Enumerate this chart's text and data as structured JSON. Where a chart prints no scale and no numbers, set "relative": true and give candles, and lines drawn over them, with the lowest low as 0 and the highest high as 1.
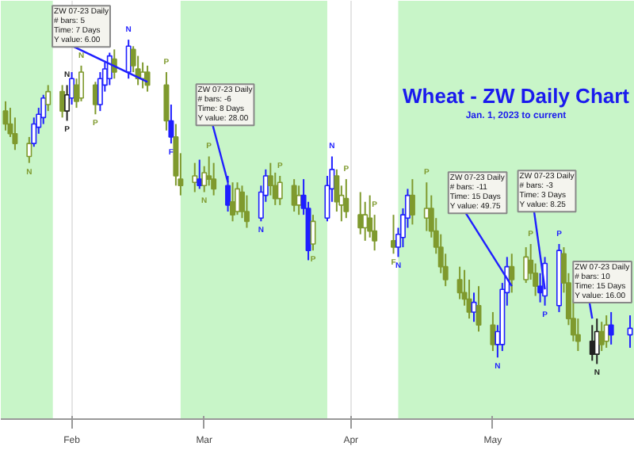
{
  "chart_data": {
    "type": "candlestick",
    "relative": true,
    "title": "Wheat - ZW Daily Chart",
    "subtitle": "Jan. 1, 2023 to current",
    "x": [
      "2023-01-18",
      "2023-01-19",
      "2023-01-20",
      "2023-01-23",
      "2023-01-24",
      "2023-01-25",
      "2023-01-26",
      "2023-01-27",
      "2023-01-30",
      "2023-01-31",
      "2023-02-01",
      "2023-02-02",
      "2023-02-03",
      "2023-02-06",
      "2023-02-07",
      "2023-02-08",
      "2023-02-09",
      "2023-02-10",
      "2023-02-13",
      "2023-02-14",
      "2023-02-15",
      "2023-02-16",
      "2023-02-17",
      "2023-02-21",
      "2023-02-22",
      "2023-02-23",
      "2023-02-24",
      "2023-02-27",
      "2023-02-28",
      "2023-03-01",
      "2023-03-02",
      "2023-03-03",
      "2023-03-06",
      "2023-03-07",
      "2023-03-08",
      "2023-03-09",
      "2023-03-10",
      "2023-03-13",
      "2023-03-14",
      "2023-03-15",
      "2023-03-16",
      "2023-03-17",
      "2023-03-20",
      "2023-03-21",
      "2023-03-22",
      "2023-03-23",
      "2023-03-24",
      "2023-03-27",
      "2023-03-28",
      "2023-03-29",
      "2023-03-30",
      "2023-03-31",
      "2023-04-03",
      "2023-04-04",
      "2023-04-05",
      "2023-04-06",
      "2023-04-10",
      "2023-04-11",
      "2023-04-12",
      "2023-04-13",
      "2023-04-14",
      "2023-04-17",
      "2023-04-18",
      "2023-04-19",
      "2023-04-20",
      "2023-04-21",
      "2023-04-24",
      "2023-04-25",
      "2023-04-26",
      "2023-04-27",
      "2023-04-28",
      "2023-05-01",
      "2023-05-02",
      "2023-05-03",
      "2023-05-04",
      "2023-05-05",
      "2023-05-08",
      "2023-05-09",
      "2023-05-10",
      "2023-05-11",
      "2023-05-12",
      "2023-05-15",
      "2023-05-16",
      "2023-05-17",
      "2023-05-18",
      "2023-05-19",
      "2023-05-22",
      "2023-05-23",
      "2023-05-24",
      "2023-05-25",
      "2023-05-26",
      "2023-05-30"
    ],
    "ohlc": [
      [
        0.78,
        0.81,
        0.72,
        0.74
      ],
      [
        0.74,
        0.79,
        0.7,
        0.71
      ],
      [
        0.71,
        0.76,
        0.66,
        0.68
      ],
      [
        0.64,
        0.7,
        0.62,
        0.68
      ],
      [
        0.68,
        0.76,
        0.67,
        0.74
      ],
      [
        0.73,
        0.79,
        0.71,
        0.77
      ],
      [
        0.76,
        0.83,
        0.74,
        0.82
      ],
      [
        0.8,
        0.86,
        0.78,
        0.84
      ],
      [
        0.84,
        0.86,
        0.76,
        0.78
      ],
      [
        0.78,
        0.86,
        0.75,
        0.83
      ],
      [
        0.82,
        0.9,
        0.8,
        0.88
      ],
      [
        0.86,
        0.88,
        0.79,
        0.81
      ],
      [
        0.82,
        0.92,
        0.81,
        0.9
      ],
      [
        0.86,
        0.87,
        0.77,
        0.8
      ],
      [
        0.8,
        0.9,
        0.78,
        0.88
      ],
      [
        0.86,
        0.93,
        0.84,
        0.91
      ],
      [
        0.88,
        0.96,
        0.86,
        0.95
      ],
      [
        0.94,
        0.97,
        0.88,
        0.9
      ],
      [
        0.9,
        1.0,
        0.88,
        0.98
      ],
      [
        0.97,
        0.98,
        0.9,
        0.92
      ],
      [
        0.91,
        0.95,
        0.86,
        0.88
      ],
      [
        0.88,
        0.93,
        0.85,
        0.9
      ],
      [
        0.9,
        0.92,
        0.84,
        0.86
      ],
      [
        0.86,
        0.9,
        0.72,
        0.75
      ],
      [
        0.75,
        0.8,
        0.68,
        0.7
      ],
      [
        0.7,
        0.74,
        0.55,
        0.58
      ],
      [
        0.57,
        0.65,
        0.52,
        0.55
      ],
      [
        0.56,
        0.62,
        0.53,
        0.58
      ],
      [
        0.57,
        0.63,
        0.54,
        0.55
      ],
      [
        0.55,
        0.61,
        0.53,
        0.59
      ],
      [
        0.58,
        0.64,
        0.55,
        0.57
      ],
      [
        0.57,
        0.62,
        0.52,
        0.54
      ],
      [
        0.55,
        0.58,
        0.47,
        0.49
      ],
      [
        0.5,
        0.56,
        0.44,
        0.46
      ],
      [
        0.47,
        0.56,
        0.46,
        0.54
      ],
      [
        0.53,
        0.55,
        0.45,
        0.47
      ],
      [
        0.47,
        0.52,
        0.42,
        0.44
      ],
      [
        0.45,
        0.55,
        0.44,
        0.53
      ],
      [
        0.52,
        0.6,
        0.5,
        0.58
      ],
      [
        0.58,
        0.62,
        0.52,
        0.55
      ],
      [
        0.55,
        0.59,
        0.49,
        0.51
      ],
      [
        0.51,
        0.58,
        0.49,
        0.56
      ],
      [
        0.55,
        0.57,
        0.47,
        0.49
      ],
      [
        0.49,
        0.55,
        0.46,
        0.52
      ],
      [
        0.52,
        0.57,
        0.46,
        0.48
      ],
      [
        0.48,
        0.5,
        0.32,
        0.35
      ],
      [
        0.37,
        0.46,
        0.35,
        0.44
      ],
      [
        0.45,
        0.58,
        0.44,
        0.55
      ],
      [
        0.54,
        0.64,
        0.5,
        0.6
      ],
      [
        0.58,
        0.6,
        0.47,
        0.5
      ],
      [
        0.49,
        0.55,
        0.44,
        0.52
      ],
      [
        0.51,
        0.57,
        0.45,
        0.47
      ],
      [
        0.46,
        0.53,
        0.4,
        0.42
      ],
      [
        0.42,
        0.5,
        0.38,
        0.46
      ],
      [
        0.45,
        0.52,
        0.39,
        0.41
      ],
      [
        0.41,
        0.46,
        0.35,
        0.38
      ],
      [
        0.38,
        0.46,
        0.34,
        0.36
      ],
      [
        0.36,
        0.42,
        0.33,
        0.4
      ],
      [
        0.39,
        0.48,
        0.36,
        0.46
      ],
      [
        0.45,
        0.54,
        0.42,
        0.52
      ],
      [
        0.52,
        0.57,
        0.43,
        0.46
      ],
      [
        0.45,
        0.56,
        0.41,
        0.48
      ],
      [
        0.48,
        0.52,
        0.39,
        0.41
      ],
      [
        0.41,
        0.45,
        0.34,
        0.36
      ],
      [
        0.36,
        0.4,
        0.28,
        0.3
      ],
      [
        0.3,
        0.34,
        0.24,
        0.26
      ],
      [
        0.26,
        0.3,
        0.2,
        0.22
      ],
      [
        0.22,
        0.29,
        0.18,
        0.2
      ],
      [
        0.2,
        0.26,
        0.14,
        0.16
      ],
      [
        0.16,
        0.22,
        0.13,
        0.19
      ],
      [
        0.18,
        0.24,
        0.1,
        0.12
      ],
      [
        0.12,
        0.16,
        0.04,
        0.06
      ],
      [
        0.06,
        0.12,
        0.02,
        0.1
      ],
      [
        0.06,
        0.25,
        0.04,
        0.23
      ],
      [
        0.22,
        0.33,
        0.18,
        0.3
      ],
      [
        0.3,
        0.34,
        0.22,
        0.26
      ],
      [
        0.26,
        0.36,
        0.25,
        0.33
      ],
      [
        0.32,
        0.37,
        0.26,
        0.28
      ],
      [
        0.28,
        0.31,
        0.21,
        0.24
      ],
      [
        0.24,
        0.28,
        0.19,
        0.22
      ],
      [
        0.21,
        0.33,
        0.18,
        0.31
      ],
      [
        0.18,
        0.37,
        0.16,
        0.35
      ],
      [
        0.34,
        0.36,
        0.22,
        0.25
      ],
      [
        0.25,
        0.28,
        0.12,
        0.14
      ],
      [
        0.14,
        0.2,
        0.07,
        0.09
      ],
      [
        0.09,
        0.14,
        0.04,
        0.07
      ],
      [
        0.07,
        0.12,
        0.01,
        0.03
      ],
      [
        0.03,
        0.14,
        0.0,
        0.1
      ],
      [
        0.1,
        0.13,
        0.04,
        0.06
      ],
      [
        0.07,
        0.15,
        0.05,
        0.12
      ],
      [
        0.12,
        0.16,
        0.06,
        0.09
      ],
      [
        0.09,
        0.15,
        0.05,
        0.11
      ]
    ],
    "colors": [
      "#7f9a2e",
      "#7f9a2e",
      "#7f9a2e",
      "#7f9a2e",
      "#1f1fff",
      "#1f1fff",
      "#1f1fff",
      "#7f9a2e",
      "#7f9a2e",
      "#222222",
      "#1f1fff",
      "#7f9a2e",
      "#7f9a2e",
      "#7f9a2e",
      "#1f1fff",
      "#1f1fff",
      "#1f1fff",
      "#7f9a2e",
      "#1f1fff",
      "#7f9a2e",
      "#7f9a2e",
      "#7f9a2e",
      "#7f9a2e",
      "#7f9a2e",
      "#1f1fff",
      "#7f9a2e",
      "#7f9a2e",
      "#7f9a2e",
      "#1f1fff",
      "#7f9a2e",
      "#7f9a2e",
      "#7f9a2e",
      "#1f1fff",
      "#7f9a2e",
      "#7f9a2e",
      "#7f9a2e",
      "#7f9a2e",
      "#1f1fff",
      "#1f1fff",
      "#7f9a2e",
      "#7f9a2e",
      "#7f9a2e",
      "#7f9a2e",
      "#7f9a2e",
      "#1f1fff",
      "#1f1fff",
      "#7f9a2e",
      "#1f1fff",
      "#1f1fff",
      "#7f9a2e",
      "#7f9a2e",
      "#7f9a2e",
      "#7f9a2e",
      "#7f9a2e",
      "#7f9a2e",
      "#7f9a2e",
      "#7f9a2e",
      "#1f1fff",
      "#1f1fff",
      "#1f1fff",
      "#7f9a2e",
      "#7f9a2e",
      "#7f9a2e",
      "#7f9a2e",
      "#7f9a2e",
      "#7f9a2e",
      "#7f9a2e",
      "#7f9a2e",
      "#7f9a2e",
      "#1f1fff",
      "#7f9a2e",
      "#7f9a2e",
      "#1f1fff",
      "#1f1fff",
      "#1f1fff",
      "#7f9a2e",
      "#7f9a2e",
      "#7f9a2e",
      "#7f9a2e",
      "#1f1fff",
      "#1f1fff",
      "#1f1fff",
      "#7f9a2e",
      "#7f9a2e",
      "#7f9a2e",
      "#7f9a2e",
      "#222222",
      "#222222",
      "#7f9a2e",
      "#7f9a2e",
      "#1f1fff",
      "#1f1fff"
    ],
    "xlim": [
      "2023-01-17",
      "2023-05-31"
    ],
    "xticks": [
      {
        "value": "2023-02-01",
        "label": "Feb"
      },
      {
        "value": "2023-03-01",
        "label": "Mar"
      },
      {
        "value": "2023-04-01",
        "label": "Apr"
      },
      {
        "value": "2023-05-01",
        "label": "May"
      }
    ],
    "grid": "x",
    "bands": [
      {
        "axis": "x",
        "from": "2023-01-17",
        "to": "2023-01-28",
        "color": "#c8f5c8"
      },
      {
        "axis": "x",
        "from": "2023-02-24",
        "to": "2023-03-27",
        "color": "#c8f5c8"
      },
      {
        "axis": "x",
        "from": "2023-04-11",
        "to": "2023-05-31",
        "color": "#c8f5c8"
      }
    ],
    "annotations": [
      {
        "text": "ZW 07-23 Daily\n# bars:   5\nTime:   7 Days\nY value:  6.00",
        "x": "2023-02-17",
        "y": 0.87
      },
      {
        "text": "ZW 07-23 Daily\n# bars:   -6\nTime:   8 Days\nY value:  28.00",
        "x": "2023-03-06",
        "y": 0.56
      },
      {
        "text": "ZW 07-23 Daily\n# bars:   -11\nTime:   15 Days\nY value:  49.75",
        "x": "2023-05-05",
        "y": 0.24
      },
      {
        "text": "ZW 07-23 Daily\n# bars:   -3\nTime:   3 Days\nY value:  8.25",
        "x": "2023-05-12",
        "y": 0.23
      },
      {
        "text": "ZW 07-23 Daily\n# bars:   10\nTime:   15 Days\nY value:  16.00",
        "x": "2023-05-22",
        "y": 0.14
      },
      {
        "text": "N",
        "x": "2023-01-23",
        "y": 0.62
      },
      {
        "text": "P",
        "x": "2023-01-31",
        "y": 0.75
      },
      {
        "text": "N",
        "x": "2023-01-31",
        "y": 0.86
      },
      {
        "text": "N",
        "x": "2023-02-03",
        "y": 0.92
      },
      {
        "text": "P",
        "x": "2023-02-06",
        "y": 0.77
      },
      {
        "text": "N",
        "x": "2023-02-13",
        "y": 1.0
      },
      {
        "text": "P",
        "x": "2023-02-21",
        "y": 0.9
      },
      {
        "text": "F",
        "x": "2023-02-22",
        "y": 0.68
      },
      {
        "text": "N",
        "x": "2023-03-01",
        "y": 0.53
      },
      {
        "text": "P",
        "x": "2023-03-02",
        "y": 0.64
      },
      {
        "text": "N",
        "x": "2023-03-13",
        "y": 0.44
      },
      {
        "text": "P",
        "x": "2023-03-17",
        "y": 0.58
      },
      {
        "text": "P",
        "x": "2023-03-24",
        "y": 0.35
      },
      {
        "text": "N",
        "x": "2023-03-28",
        "y": 0.64
      },
      {
        "text": "P",
        "x": "2023-03-31",
        "y": 0.57
      },
      {
        "text": "P",
        "x": "2023-04-06",
        "y": 0.46
      },
      {
        "text": "F",
        "x": "2023-04-10",
        "y": 0.34
      },
      {
        "text": "N",
        "x": "2023-04-11",
        "y": 0.33
      },
      {
        "text": "P",
        "x": "2023-04-17",
        "y": 0.56
      },
      {
        "text": "N",
        "x": "2023-05-02",
        "y": 0.02
      },
      {
        "text": "P",
        "x": "2023-05-09",
        "y": 0.37
      },
      {
        "text": "P",
        "x": "2023-05-12",
        "y": 0.18
      },
      {
        "text": "P",
        "x": "2023-05-15",
        "y": 0.37
      },
      {
        "text": "N",
        "x": "2023-05-23",
        "y": 0.0
      }
    ]
  }
}
